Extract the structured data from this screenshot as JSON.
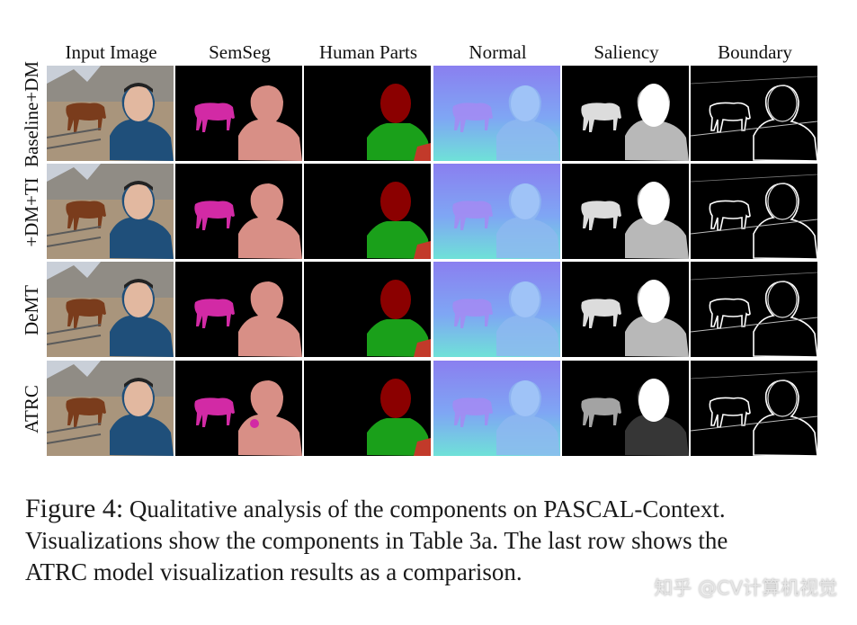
{
  "figure": {
    "columns": [
      "Input Image",
      "SemSeg",
      "Human Parts",
      "Normal",
      "Saliency",
      "Boundary"
    ],
    "rows": [
      "Baseline+DM",
      "+DM+TI",
      "DeMT",
      "ATRC"
    ]
  },
  "caption": {
    "label": "Figure 4:",
    "text": "Qualitative analysis of the components on PASCAL-Context. Visualizations show the components in Table 3a. The last row shows the ATRC model visualization results as a comparison."
  },
  "watermark": "知乎 @CV计算机视觉",
  "colors": {
    "semseg_horse": "#d22aa5",
    "semseg_person": "#d88f86",
    "parts_head": "#8b0000",
    "parts_torso": "#1aa01a",
    "parts_arm": "#c23a2a",
    "normal_bg": "#7f86f2"
  }
}
